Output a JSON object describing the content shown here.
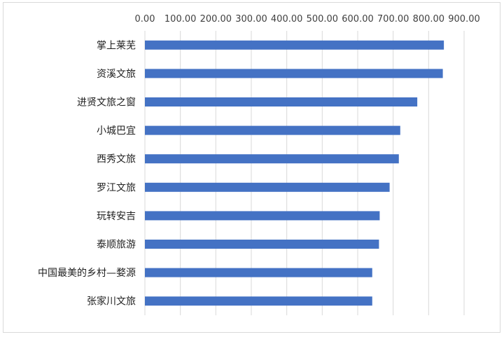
{
  "chart_data": {
    "type": "bar",
    "orientation": "horizontal",
    "categories": [
      "掌上莱芜",
      "资溪文旅",
      "进贤文旅之窗",
      "小城巴宜",
      "西秀文旅",
      "罗江文旅",
      "玩转安吉",
      "泰顺旅游",
      "中国最美的乡村—婺源",
      "张家川文旅"
    ],
    "values": [
      843,
      840,
      768,
      720,
      716,
      690,
      662,
      660,
      641,
      641
    ],
    "x_ticks": [
      "0.00",
      "100.00",
      "200.00",
      "300.00",
      "400.00",
      "500.00",
      "600.00",
      "700.00",
      "800.00",
      "900.00"
    ],
    "xlim": [
      0,
      900
    ],
    "grid": true,
    "x_axis_position": "top",
    "bar_color": "#4472c4",
    "grid_color": "#d9d9d9",
    "legend": "none"
  }
}
